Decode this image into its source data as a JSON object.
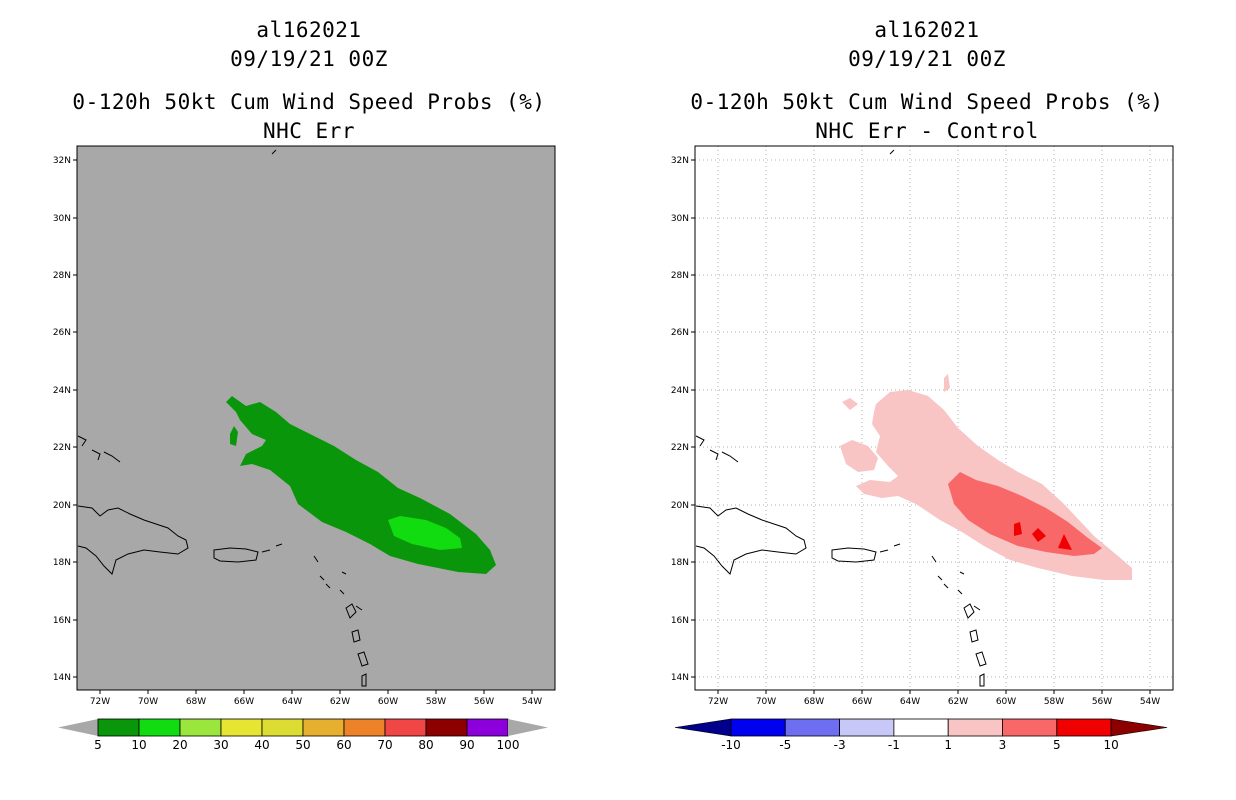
{
  "colors": {
    "ocean_left": "#a8a8a8",
    "ocean_right": "#ffffff",
    "green_dark": "#0a960a",
    "green_light": "#10dc10",
    "pink_light": "#f8c4c4",
    "red_mid": "#f86868",
    "red_bright": "#f00000",
    "grid": "#b0b0b0"
  },
  "panels": [
    {
      "storm_id": "al162021",
      "datetime": "09/19/21 00Z",
      "product": "0-120h 50kt Cum Wind Speed Probs (%)",
      "subtitle": "NHC Err",
      "lat_labels": [
        "32N",
        "30N",
        "28N",
        "26N",
        "24N",
        "22N",
        "20N",
        "18N",
        "16N",
        "14N"
      ],
      "lon_labels": [
        "72W",
        "70W",
        "68W",
        "66W",
        "64W",
        "62W",
        "60W",
        "58W",
        "56W",
        "54W"
      ],
      "colorbar": {
        "labels": [
          "5",
          "10",
          "20",
          "30",
          "40",
          "50",
          "60",
          "70",
          "80",
          "90",
          "100"
        ],
        "colors": [
          "#0a960a",
          "#10dc10",
          "#9ae63c",
          "#e6e632",
          "#dcdc32",
          "#e6af2d",
          "#ed8228",
          "#f04646",
          "#8c0000",
          "#8c00dc"
        ],
        "end_color": "#a8a8a8"
      }
    },
    {
      "storm_id": "al162021",
      "datetime": "09/19/21 00Z",
      "product": "0-120h 50kt Cum Wind Speed Probs (%)",
      "subtitle": "NHC Err - Control",
      "lat_labels": [
        "32N",
        "30N",
        "28N",
        "26N",
        "24N",
        "22N",
        "20N",
        "18N",
        "16N",
        "14N"
      ],
      "lon_labels": [
        "72W",
        "70W",
        "68W",
        "66W",
        "64W",
        "62W",
        "60W",
        "58W",
        "56W",
        "54W"
      ],
      "colorbar": {
        "labels": [
          "-10",
          "-5",
          "-3",
          "-1",
          "1",
          "3",
          "5",
          "10"
        ],
        "colors": [
          "#0000f0",
          "#6e6ef0",
          "#c8c8f8",
          "#ffffff",
          "#f8c4c4",
          "#f86868",
          "#f00000"
        ],
        "end_left": "#00008c",
        "end_right": "#8c0000"
      }
    }
  ]
}
